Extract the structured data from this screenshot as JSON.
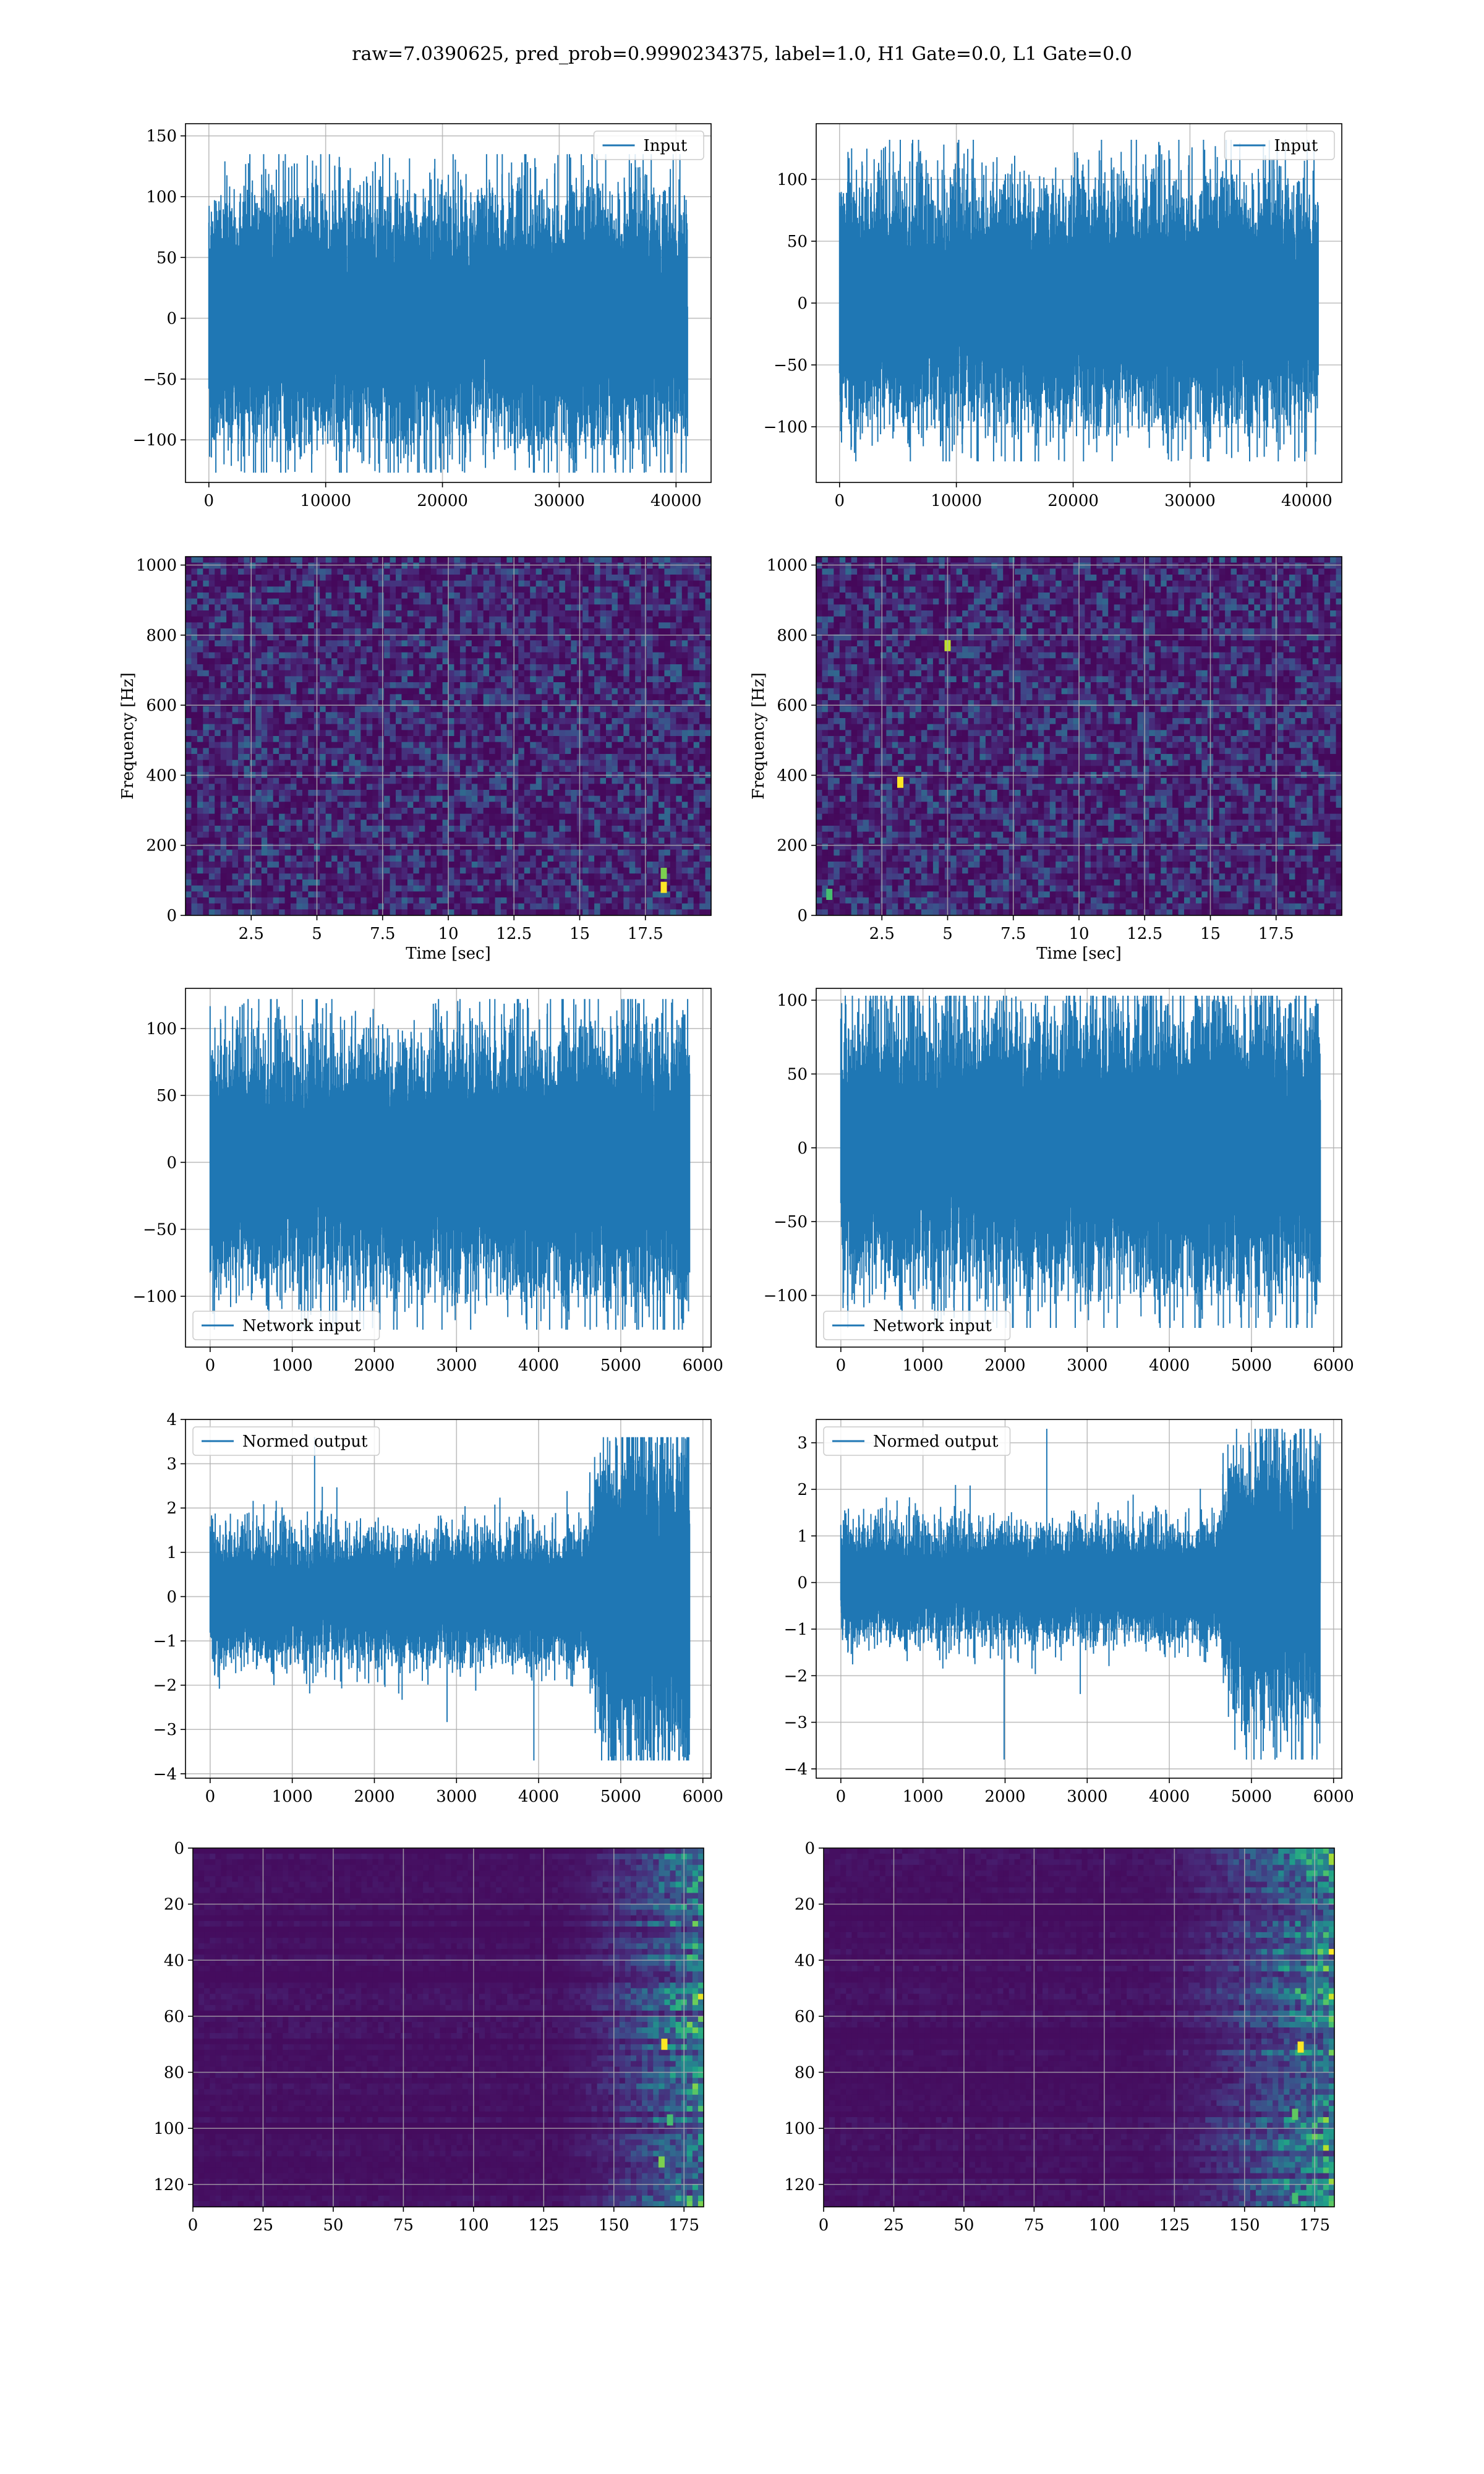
{
  "title": "raw=7.0390625, pred_prob=0.9990234375, label=1.0, H1 Gate=0.0, L1 Gate=0.0",
  "colors": {
    "line": "#1f77b4",
    "grid": "#b0b0b0",
    "viridis_low": "#440154",
    "viridis_high": "#fde725"
  },
  "chart_data": [
    {
      "id": "r1-left",
      "type": "line",
      "legend": "Input",
      "legend_loc": "upper right",
      "xlim": [
        -2000,
        43000
      ],
      "ylim": [
        -135,
        160
      ],
      "xticks": [
        0,
        10000,
        20000,
        30000,
        40000
      ],
      "yticks": [
        -100,
        -50,
        0,
        50,
        100,
        150
      ],
      "xlabel": "",
      "ylabel": "",
      "signal": {
        "n": 41000,
        "amp": [
          {
            "x": 0,
            "a": 32
          },
          {
            "x": 41000,
            "a": 32
          }
        ],
        "peak_max": 135,
        "peak_min": -127
      }
    },
    {
      "id": "r1-right",
      "type": "line",
      "legend": "Input",
      "legend_loc": "upper right",
      "xlim": [
        -2000,
        43000
      ],
      "ylim": [
        -145,
        145
      ],
      "xticks": [
        0,
        10000,
        20000,
        30000,
        40000
      ],
      "yticks": [
        -100,
        -50,
        0,
        50,
        100
      ],
      "xlabel": "",
      "ylabel": "",
      "signal": {
        "n": 41000,
        "amp": [
          {
            "x": 0,
            "a": 30
          },
          {
            "x": 41000,
            "a": 30
          }
        ],
        "peak_max": 132,
        "peak_min": -128
      }
    },
    {
      "id": "r2-left",
      "type": "heatmap",
      "xlim": [
        0,
        20
      ],
      "ylim": [
        0,
        1024
      ],
      "xticks": [
        2.5,
        5,
        7.5,
        10,
        12.5,
        15,
        17.5
      ],
      "yticks": [
        0,
        200,
        400,
        600,
        800,
        1000
      ],
      "xlabel": "Time [sec]",
      "ylabel": "Frequency [Hz]",
      "invert_y": false,
      "bright_spots": [
        {
          "x": 18.2,
          "y": 80,
          "v": 1.0
        },
        {
          "x": 18.2,
          "y": 120,
          "v": 0.8
        }
      ]
    },
    {
      "id": "r2-right",
      "type": "heatmap",
      "xlim": [
        0,
        20
      ],
      "ylim": [
        0,
        1024
      ],
      "xticks": [
        2.5,
        5,
        7.5,
        10,
        12.5,
        15,
        17.5
      ],
      "yticks": [
        0,
        200,
        400,
        600,
        800,
        1000
      ],
      "xlabel": "Time [sec]",
      "ylabel": "Frequency [Hz]",
      "invert_y": false,
      "bright_spots": [
        {
          "x": 3.2,
          "y": 380,
          "v": 1.0
        },
        {
          "x": 5.0,
          "y": 770,
          "v": 0.9
        },
        {
          "x": 0.5,
          "y": 60,
          "v": 0.7
        }
      ]
    },
    {
      "id": "r3-left",
      "type": "line",
      "legend": "Network input",
      "legend_loc": "lower left",
      "xlim": [
        -300,
        6100
      ],
      "ylim": [
        -138,
        130
      ],
      "xticks": [
        0,
        1000,
        2000,
        3000,
        4000,
        5000,
        6000
      ],
      "yticks": [
        -100,
        -50,
        0,
        50,
        100
      ],
      "xlabel": "",
      "ylabel": "",
      "signal": {
        "n": 5840,
        "amp": [
          {
            "x": 0,
            "a": 28
          },
          {
            "x": 4500,
            "a": 30
          },
          {
            "x": 5800,
            "a": 34
          }
        ],
        "peak_max": 122,
        "peak_min": -125
      }
    },
    {
      "id": "r3-right",
      "type": "line",
      "legend": "Network input",
      "legend_loc": "lower left",
      "xlim": [
        -300,
        6100
      ],
      "ylim": [
        -135,
        108
      ],
      "xticks": [
        0,
        1000,
        2000,
        3000,
        4000,
        5000,
        6000
      ],
      "yticks": [
        -100,
        -50,
        0,
        50,
        100
      ],
      "xlabel": "",
      "ylabel": "",
      "signal": {
        "n": 5840,
        "amp": [
          {
            "x": 0,
            "a": 28
          },
          {
            "x": 5800,
            "a": 30
          }
        ],
        "peak_max": 103,
        "peak_min": -122
      }
    },
    {
      "id": "r4-left",
      "type": "line",
      "legend": "Normed output",
      "legend_loc": "upper left",
      "xlim": [
        -300,
        6100
      ],
      "ylim": [
        -4.1,
        4.0
      ],
      "xticks": [
        0,
        1000,
        2000,
        3000,
        4000,
        5000,
        6000
      ],
      "yticks": [
        -4,
        -3,
        -2,
        -1,
        0,
        1,
        2,
        3,
        4
      ],
      "xlabel": "",
      "ylabel": "",
      "signal": {
        "n": 5840,
        "amp": [
          {
            "x": 0,
            "a": 0.45
          },
          {
            "x": 4600,
            "a": 0.45
          },
          {
            "x": 4800,
            "a": 1.1
          },
          {
            "x": 5800,
            "a": 1.2
          }
        ],
        "peak_max": 3.6,
        "peak_min": -3.7
      }
    },
    {
      "id": "r4-right",
      "type": "line",
      "legend": "Normed output",
      "legend_loc": "upper left",
      "xlim": [
        -300,
        6100
      ],
      "ylim": [
        -4.2,
        3.5
      ],
      "xticks": [
        0,
        1000,
        2000,
        3000,
        4000,
        5000,
        6000
      ],
      "yticks": [
        -4,
        -3,
        -2,
        -1,
        0,
        1,
        2,
        3
      ],
      "xlabel": "",
      "ylabel": "",
      "signal": {
        "n": 5840,
        "amp": [
          {
            "x": 0,
            "a": 0.38
          },
          {
            "x": 4600,
            "a": 0.38
          },
          {
            "x": 4800,
            "a": 0.9
          },
          {
            "x": 5800,
            "a": 1.0
          }
        ],
        "peak_max": 3.3,
        "peak_min": -3.8
      }
    },
    {
      "id": "r5-left",
      "type": "heatmap",
      "xlim": [
        0,
        182
      ],
      "ylim": [
        128,
        0
      ],
      "xticks": [
        0,
        25,
        50,
        75,
        100,
        125,
        150,
        175
      ],
      "yticks": [
        0,
        20,
        40,
        60,
        80,
        100,
        120
      ],
      "xlabel": "",
      "ylabel": "",
      "invert_y": true,
      "activation_start": 125,
      "bright_spots": [
        {
          "x": 168,
          "y": 70,
          "v": 1.0
        },
        {
          "x": 167,
          "y": 112,
          "v": 0.8
        },
        {
          "x": 170,
          "y": 97,
          "v": 0.7
        }
      ]
    },
    {
      "id": "r5-right",
      "type": "heatmap",
      "xlim": [
        0,
        182
      ],
      "ylim": [
        128,
        0
      ],
      "xticks": [
        0,
        25,
        50,
        75,
        100,
        125,
        150,
        175
      ],
      "yticks": [
        0,
        20,
        40,
        60,
        80,
        100,
        120
      ],
      "xlabel": "",
      "ylabel": "",
      "invert_y": true,
      "activation_start": 110,
      "bright_spots": [
        {
          "x": 170,
          "y": 71,
          "v": 1.0
        },
        {
          "x": 168,
          "y": 95,
          "v": 0.75
        },
        {
          "x": 168,
          "y": 125,
          "v": 0.7
        }
      ]
    }
  ]
}
